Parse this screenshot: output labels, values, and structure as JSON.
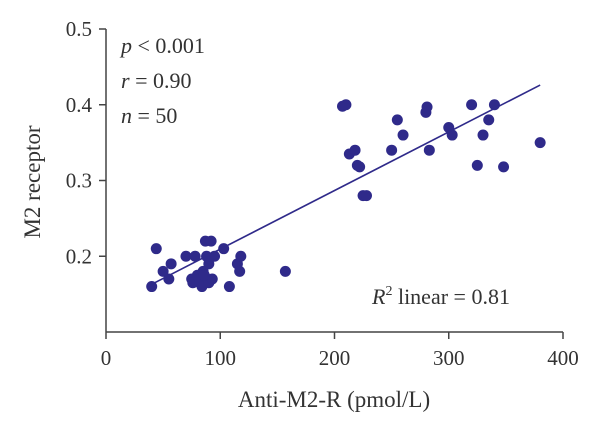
{
  "chart_data": {
    "type": "scatter",
    "title": "",
    "xlabel": "Anti-M2-R (pmol/L)",
    "ylabel": "M2 receptor",
    "xlim": [
      0,
      400
    ],
    "ylim": [
      0.1,
      0.5
    ],
    "x_ticks": [
      0,
      100,
      200,
      300,
      400
    ],
    "y_ticks": [
      0.2,
      0.3,
      0.4,
      0.5
    ],
    "x_tick_labels": [
      "0",
      "100",
      "200",
      "300",
      "400"
    ],
    "y_tick_labels": [
      "0.2",
      "0.3",
      "0.4",
      "0.5"
    ],
    "grid": false,
    "colors": {
      "points": "#2f2a8a",
      "line": "#2f2a8a",
      "axis": "#444444"
    },
    "annotations": {
      "p_symbol": "p",
      "p_value": " < 0.001",
      "r_symbol": "r",
      "r_value": " = 0.90",
      "n_symbol": "n",
      "n_value": " = 50",
      "r2_symbol": "R",
      "r2_exponent": "2",
      "r2_text": " linear = 0.81"
    },
    "trendline": {
      "x": [
        40,
        380
      ],
      "y": [
        0.163,
        0.426
      ]
    },
    "points": [
      {
        "x": 40,
        "y": 0.16
      },
      {
        "x": 44,
        "y": 0.21
      },
      {
        "x": 50,
        "y": 0.18
      },
      {
        "x": 55,
        "y": 0.17
      },
      {
        "x": 57,
        "y": 0.19
      },
      {
        "x": 70,
        "y": 0.2
      },
      {
        "x": 75,
        "y": 0.17
      },
      {
        "x": 76,
        "y": 0.165
      },
      {
        "x": 78,
        "y": 0.2
      },
      {
        "x": 80,
        "y": 0.175
      },
      {
        "x": 82,
        "y": 0.17
      },
      {
        "x": 84,
        "y": 0.16
      },
      {
        "x": 85,
        "y": 0.18
      },
      {
        "x": 87,
        "y": 0.22
      },
      {
        "x": 88,
        "y": 0.2
      },
      {
        "x": 90,
        "y": 0.165
      },
      {
        "x": 90,
        "y": 0.19
      },
      {
        "x": 92,
        "y": 0.22
      },
      {
        "x": 93,
        "y": 0.17
      },
      {
        "x": 95,
        "y": 0.2
      },
      {
        "x": 103,
        "y": 0.21
      },
      {
        "x": 108,
        "y": 0.16
      },
      {
        "x": 115,
        "y": 0.19
      },
      {
        "x": 117,
        "y": 0.18
      },
      {
        "x": 118,
        "y": 0.2
      },
      {
        "x": 157,
        "y": 0.18
      },
      {
        "x": 207,
        "y": 0.398
      },
      {
        "x": 210,
        "y": 0.4
      },
      {
        "x": 213,
        "y": 0.335
      },
      {
        "x": 218,
        "y": 0.34
      },
      {
        "x": 220,
        "y": 0.32
      },
      {
        "x": 222,
        "y": 0.318
      },
      {
        "x": 225,
        "y": 0.28
      },
      {
        "x": 228,
        "y": 0.28
      },
      {
        "x": 250,
        "y": 0.34
      },
      {
        "x": 255,
        "y": 0.38
      },
      {
        "x": 260,
        "y": 0.36
      },
      {
        "x": 280,
        "y": 0.39
      },
      {
        "x": 281,
        "y": 0.397
      },
      {
        "x": 283,
        "y": 0.34
      },
      {
        "x": 300,
        "y": 0.37
      },
      {
        "x": 303,
        "y": 0.36
      },
      {
        "x": 320,
        "y": 0.4
      },
      {
        "x": 325,
        "y": 0.32
      },
      {
        "x": 330,
        "y": 0.36
      },
      {
        "x": 335,
        "y": 0.38
      },
      {
        "x": 340,
        "y": 0.4
      },
      {
        "x": 348,
        "y": 0.318
      },
      {
        "x": 380,
        "y": 0.35
      },
      {
        "x": 86,
        "y": 0.175
      }
    ]
  }
}
